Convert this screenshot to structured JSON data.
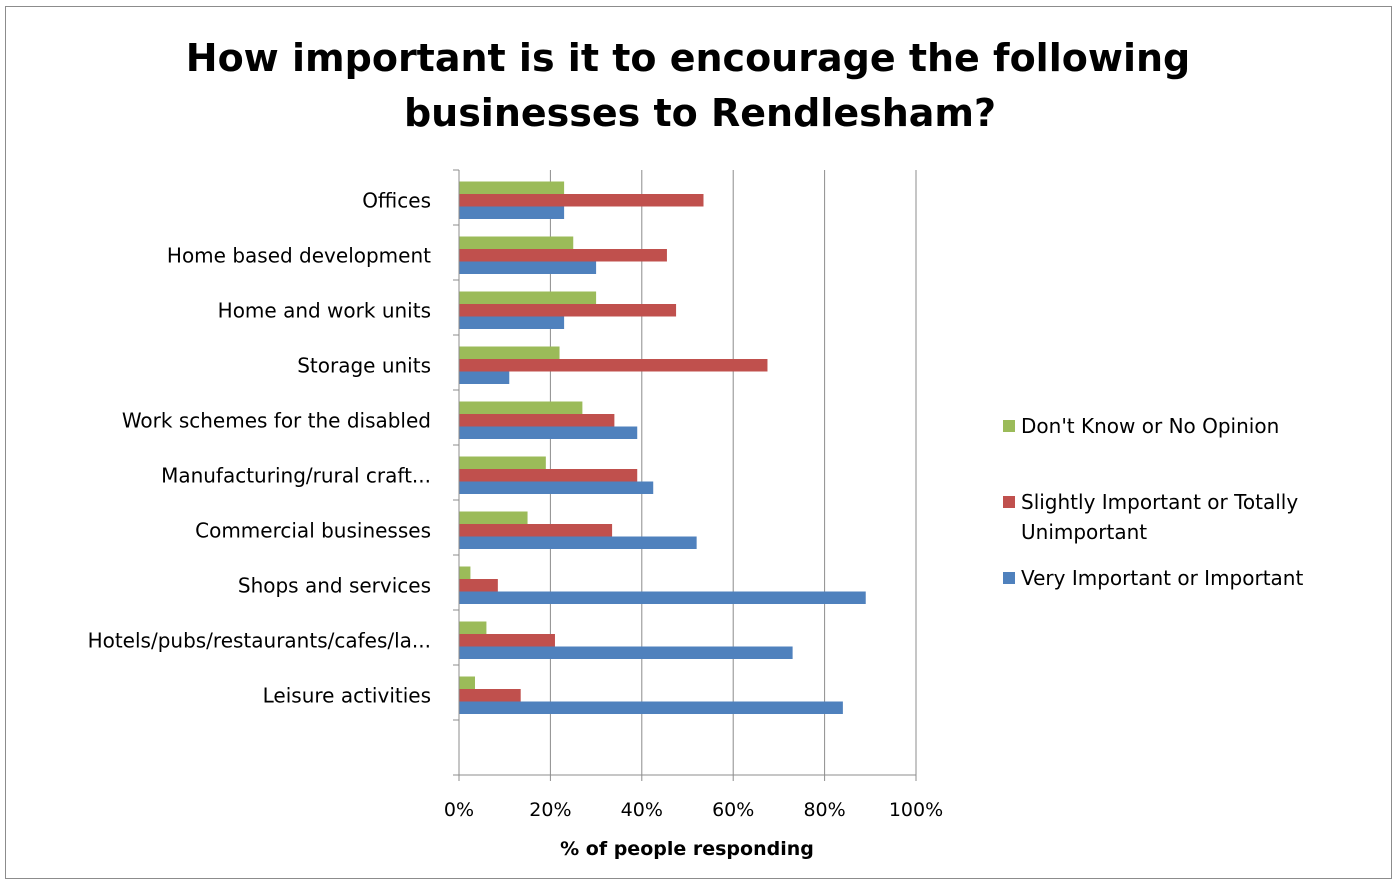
{
  "chart_data": {
    "type": "bar",
    "orientation": "horizontal",
    "title": "How important is it to encourage the following businesses to Rendlesham?",
    "title_lines": [
      "How important is it to encourage the following",
      "businesses to Rendlesham?"
    ],
    "xlabel": "% of people responding",
    "ylabel": "",
    "xlim": [
      0,
      100
    ],
    "x_ticks": [
      "0%",
      "20%",
      "40%",
      "60%",
      "80%",
      "100%"
    ],
    "grid": "vertical major gridlines",
    "legend_position": "right",
    "categories": [
      "Offices",
      "Home based development",
      "Home and work units",
      "Storage units",
      "Work schemes for the disabled",
      "Manufacturing/rural craft...",
      "Commercial businesses",
      "Shops and services",
      "Hotels/pubs/restaurants/cafes/la...",
      "Leisure activities"
    ],
    "series": [
      {
        "name": "Don't Know or No Opinion",
        "color": "#9bbb59",
        "values": [
          23,
          25,
          30,
          22,
          27,
          19,
          15,
          2.5,
          6,
          3.5
        ]
      },
      {
        "name": "Slightly Important or Totally Unimportant",
        "color": "#c0504d",
        "values": [
          53.5,
          45.5,
          47.5,
          67.5,
          34,
          39,
          33.5,
          8.5,
          21,
          13.5
        ]
      },
      {
        "name": "Very Important or Important",
        "color": "#4f81bd",
        "values": [
          23,
          30,
          23,
          11,
          39,
          42.5,
          52,
          89,
          73,
          84
        ]
      }
    ],
    "legend_lines": [
      [
        "Don't Know or No Opinion"
      ],
      [
        "Slightly Important or Totally",
        "Unimportant"
      ],
      [
        "Very Important or Important"
      ]
    ]
  }
}
